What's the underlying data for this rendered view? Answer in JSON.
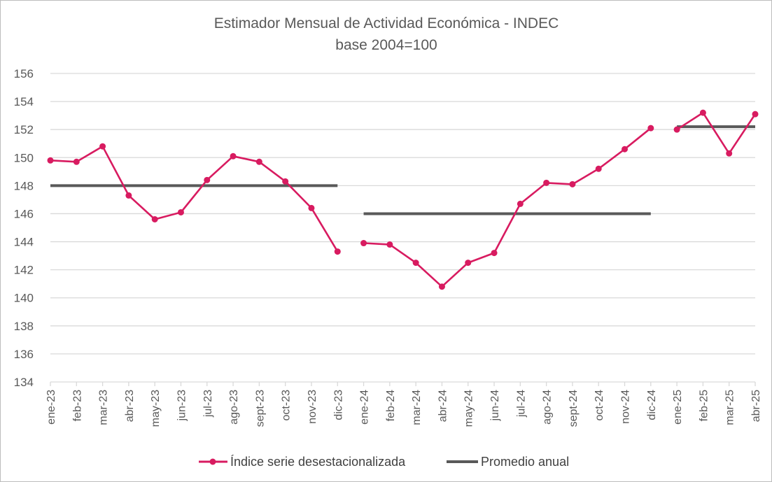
{
  "chart_data": {
    "type": "line",
    "title": "Estimador Mensual de Actividad Económica - INDEC",
    "subtitle": "base 2004=100",
    "xlabel": "",
    "ylabel": "",
    "ylim": [
      134,
      156
    ],
    "ytick_step": 2,
    "grid": true,
    "legend_position": "bottom",
    "categories": [
      "ene-23",
      "feb-23",
      "mar-23",
      "abr-23",
      "may-23",
      "jun-23",
      "jul-23",
      "ago-23",
      "sept-23",
      "oct-23",
      "nov-23",
      "dic-23",
      "ene-24",
      "feb-24",
      "mar-24",
      "abr-24",
      "may-24",
      "jun-24",
      "jul-24",
      "ago-24",
      "sept-24",
      "oct-24",
      "nov-24",
      "dic-24",
      "ene-25",
      "feb-25",
      "mar-25",
      "abr-25"
    ],
    "series": [
      {
        "name": "Índice serie desestacionalizada",
        "color": "#d81b60",
        "marker": "circle",
        "segments": [
          [
            0,
            11
          ],
          [
            12,
            23
          ],
          [
            24,
            27
          ]
        ],
        "values": [
          149.8,
          149.7,
          150.8,
          147.3,
          145.6,
          146.1,
          148.4,
          150.1,
          149.7,
          148.3,
          146.4,
          143.3,
          143.9,
          143.8,
          142.5,
          140.8,
          142.5,
          143.2,
          146.7,
          148.2,
          148.1,
          149.2,
          150.6,
          152.1,
          152.0,
          153.2,
          150.3,
          153.1
        ]
      },
      {
        "name": "Promedio anual",
        "color": "#595959",
        "segments": [
          {
            "from": 0,
            "to": 11,
            "value": 148.0
          },
          {
            "from": 12,
            "to": 23,
            "value": 146.0
          },
          {
            "from": 24,
            "to": 27,
            "value": 152.2
          }
        ]
      }
    ]
  }
}
